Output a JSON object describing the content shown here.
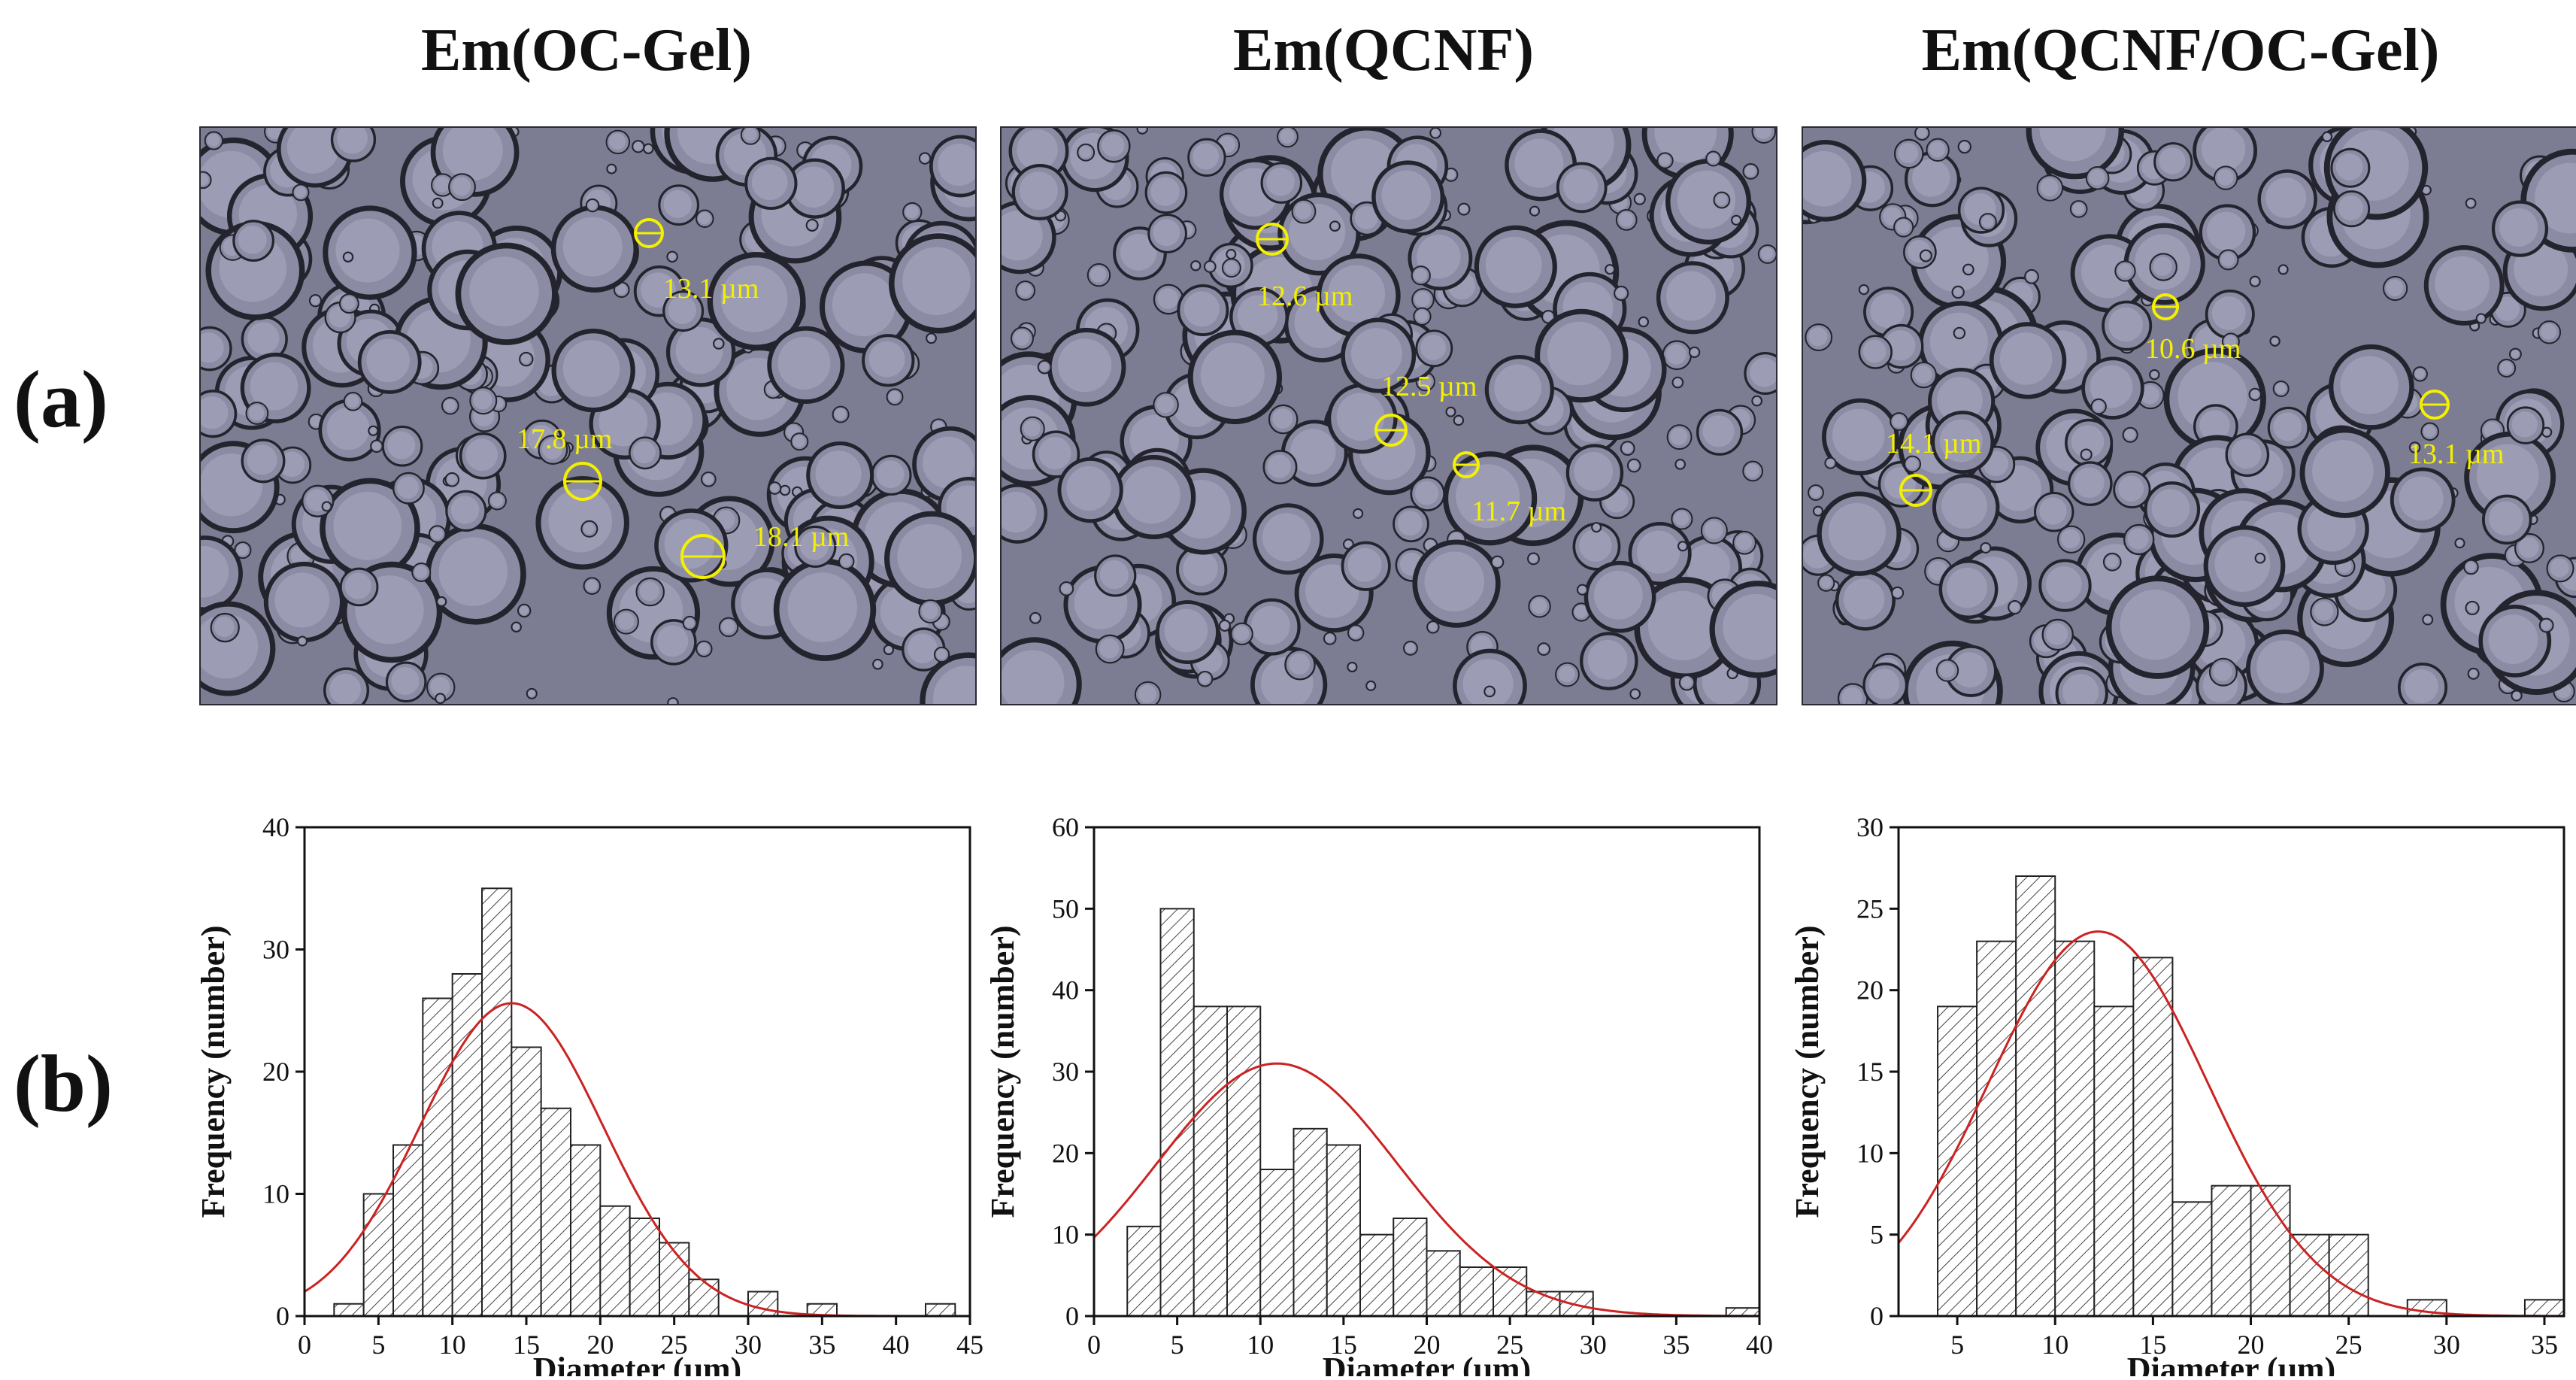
{
  "row_labels": {
    "a": "(a)",
    "b": "(b)"
  },
  "panels": [
    {
      "title": "Em(OC-Gel)",
      "measurements": [
        "13.1 µm",
        "17.8 µm",
        "18.1 µm"
      ]
    },
    {
      "title": "Em(QCNF)",
      "measurements": [
        "12.6 µm",
        "12.5 µm",
        "11.7 µm"
      ]
    },
    {
      "title": "Em(QCNF/OC-Gel)",
      "measurements": [
        "10.6 µm",
        "14.1 µm",
        "13.1 µm"
      ]
    }
  ],
  "colors": {
    "micro_background": "#7c7d92",
    "measurement": "#f3f000",
    "fit_curve": "#cc2222",
    "bar_edge": "#222222"
  },
  "chart_data": [
    {
      "type": "bar",
      "title": "Em(OC-Gel)",
      "xlabel": "Diameter (µm)",
      "ylabel": "Frequency (number)",
      "bin_width": 2,
      "bin_starts": [
        2,
        4,
        6,
        8,
        10,
        12,
        14,
        16,
        18,
        20,
        22,
        24,
        26,
        28,
        30,
        32,
        34,
        36,
        38,
        40,
        42
      ],
      "values": [
        1,
        10,
        14,
        26,
        28,
        35,
        22,
        17,
        14,
        9,
        8,
        6,
        3,
        0,
        2,
        0,
        1,
        0,
        0,
        0,
        1
      ],
      "xlim": [
        0,
        45
      ],
      "xticks": [
        0,
        5,
        10,
        15,
        20,
        25,
        30,
        35,
        40,
        45
      ],
      "ylim": [
        0,
        40
      ],
      "yticks": [
        0,
        10,
        20,
        30,
        40
      ],
      "fit": {
        "type": "gaussian",
        "mean": 14,
        "sd": 6.2,
        "peak": 25.6
      }
    },
    {
      "type": "bar",
      "title": "Em(QCNF)",
      "xlabel": "Diameter (µm)",
      "ylabel": "Frequency (number)",
      "bin_width": 2,
      "bin_starts": [
        2,
        4,
        6,
        8,
        10,
        12,
        14,
        16,
        18,
        20,
        22,
        24,
        26,
        28,
        30,
        32,
        34,
        36,
        38
      ],
      "values": [
        11,
        50,
        38,
        38,
        18,
        23,
        21,
        10,
        12,
        8,
        6,
        6,
        3,
        3,
        0,
        0,
        0,
        0,
        1
      ],
      "xlim": [
        0,
        40
      ],
      "xticks": [
        0,
        5,
        10,
        15,
        20,
        25,
        30,
        35,
        40
      ],
      "ylim": [
        0,
        60
      ],
      "yticks": [
        0,
        10,
        20,
        30,
        40,
        50,
        60
      ],
      "fit": {
        "type": "gaussian",
        "mean": 11,
        "sd": 7.2,
        "peak": 31
      }
    },
    {
      "type": "bar",
      "title": "Em(QCNF/OC-Gel)",
      "xlabel": "Diameter (µm)",
      "ylabel": "Frequency (number)",
      "bin_width": 2,
      "bin_starts": [
        4,
        6,
        8,
        10,
        12,
        14,
        16,
        18,
        20,
        22,
        24,
        26,
        28,
        30,
        32,
        34
      ],
      "values": [
        19,
        23,
        27,
        23,
        19,
        22,
        7,
        8,
        8,
        5,
        5,
        0,
        1,
        0,
        0,
        1
      ],
      "xlim": [
        2,
        36
      ],
      "xticks": [
        5,
        10,
        15,
        20,
        25,
        30,
        35
      ],
      "ylim": [
        0,
        30
      ],
      "yticks": [
        0,
        5,
        10,
        15,
        20,
        25,
        30
      ],
      "fit": {
        "type": "gaussian",
        "mean": 12.2,
        "sd": 5.6,
        "peak": 23.6
      }
    }
  ]
}
